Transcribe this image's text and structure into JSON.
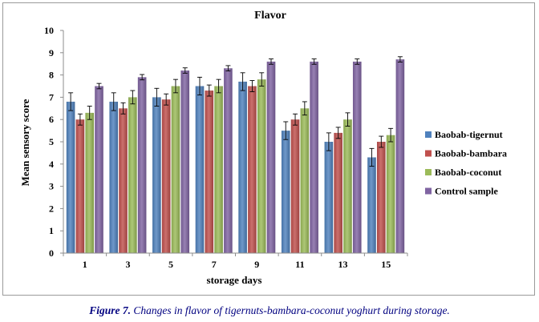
{
  "chart_data": {
    "type": "bar",
    "title": "Flavor",
    "xlabel": "storage days",
    "ylabel": "Mean sensory score",
    "ylim": [
      0,
      10
    ],
    "yticks": [
      "0",
      "1",
      "2",
      "3",
      "4",
      "5",
      "6",
      "7",
      "8",
      "9",
      "10"
    ],
    "categories": [
      "1",
      "3",
      "5",
      "7",
      "9",
      "11",
      "13",
      "15"
    ],
    "legend_position": "right",
    "grid": false,
    "error_bars": true,
    "series": [
      {
        "name": "Baobab-tigernut",
        "color": "#4f81bd",
        "values": [
          6.8,
          6.8,
          7.0,
          7.5,
          7.7,
          5.5,
          5.0,
          4.3
        ],
        "errors": [
          0.4,
          0.4,
          0.4,
          0.4,
          0.4,
          0.4,
          0.4,
          0.4
        ]
      },
      {
        "name": "Baobab-bambara",
        "color": "#c0504d",
        "values": [
          6.0,
          6.5,
          6.9,
          7.3,
          7.5,
          6.0,
          5.4,
          5.0
        ],
        "errors": [
          0.25,
          0.25,
          0.25,
          0.25,
          0.25,
          0.25,
          0.25,
          0.25
        ]
      },
      {
        "name": "Baobab-coconut",
        "color": "#9bbb59",
        "values": [
          6.3,
          7.0,
          7.5,
          7.5,
          7.8,
          6.5,
          6.0,
          5.3
        ],
        "errors": [
          0.3,
          0.3,
          0.3,
          0.3,
          0.3,
          0.3,
          0.3,
          0.3
        ]
      },
      {
        "name": "Control sample",
        "color": "#8064a2",
        "values": [
          7.5,
          7.9,
          8.2,
          8.3,
          8.6,
          8.6,
          8.6,
          8.7
        ],
        "errors": [
          0.12,
          0.12,
          0.12,
          0.12,
          0.12,
          0.12,
          0.12,
          0.12
        ]
      }
    ]
  },
  "caption": {
    "label": "Figure 7.",
    "text": " Changes in flavor of tigernuts-bambara-coconut yoghurt during storage."
  }
}
